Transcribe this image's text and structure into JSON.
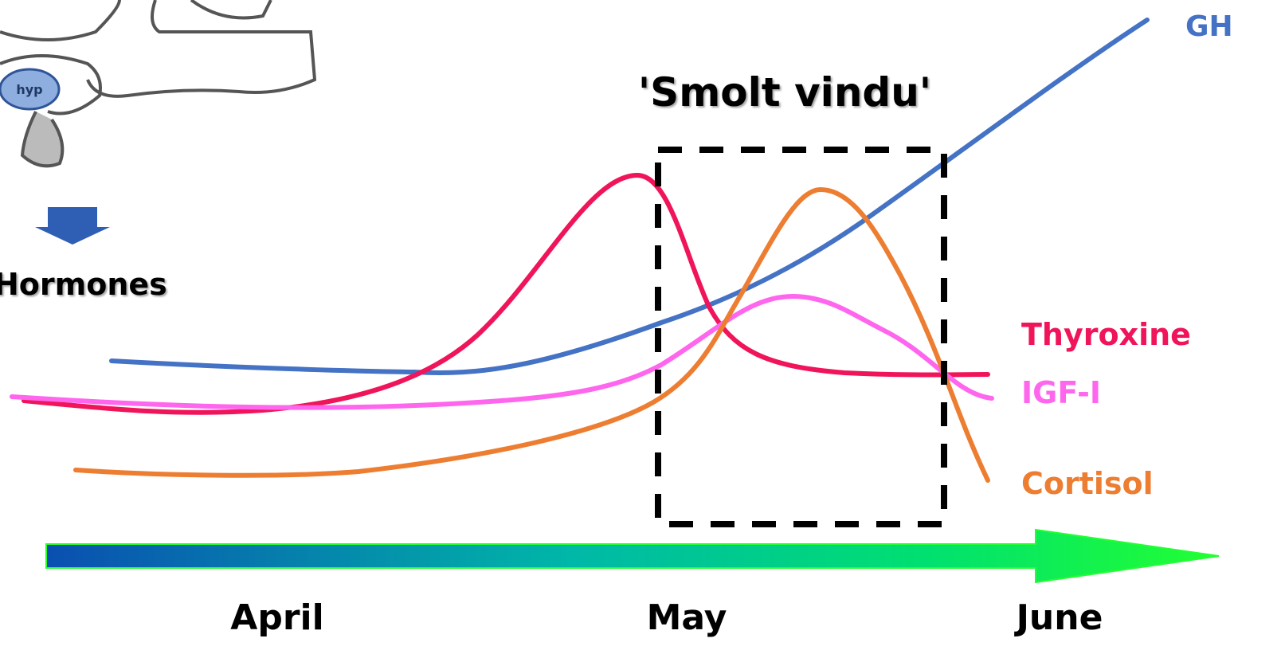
{
  "brain": {
    "label": "hyp"
  },
  "hormones_label": "Hormones",
  "window": {
    "label": "'Smolt vindu'"
  },
  "curves": [
    {
      "label": "GH"
    },
    {
      "label": "Thyroxine"
    },
    {
      "label": "IGF-I"
    },
    {
      "label": "Cortisol"
    }
  ],
  "timeline": {
    "months": [
      "April",
      "May",
      "June"
    ]
  }
}
